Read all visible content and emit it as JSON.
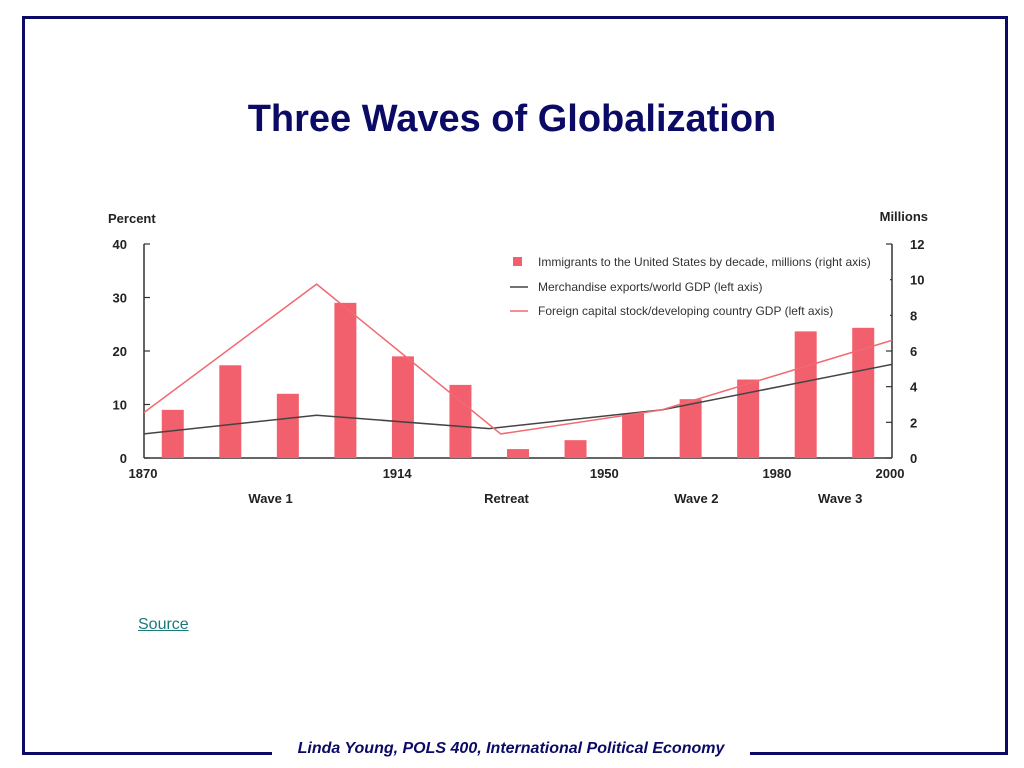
{
  "slide": {
    "title": "Three Waves of Globalization",
    "source_label": "Source",
    "footer": "Linda Young, POLS 400, International Political Economy",
    "border_color": "#0b0b66",
    "title_color": "#0b0b66"
  },
  "chart_data": {
    "type": "bar",
    "left_axis_label": "Percent",
    "right_axis_label": "Millions",
    "left_ylim": [
      0,
      40
    ],
    "left_ticks": [
      "0",
      "10",
      "20",
      "30",
      "40"
    ],
    "right_ylim": [
      0,
      12
    ],
    "right_ticks": [
      "0",
      "2",
      "4",
      "6",
      "8",
      "10",
      "12"
    ],
    "xlim": [
      1870,
      2000
    ],
    "x_tick_labels": [
      {
        "year": 1870,
        "label": "1870"
      },
      {
        "year": 1914,
        "label": "1914"
      },
      {
        "year": 1950,
        "label": "1950"
      },
      {
        "year": 1980,
        "label": "1980"
      },
      {
        "year": 2000,
        "label": "2000"
      }
    ],
    "period_labels": [
      {
        "year": 1892,
        "label": "Wave 1"
      },
      {
        "year": 1933,
        "label": "Retreat"
      },
      {
        "year": 1966,
        "label": "Wave 2"
      },
      {
        "year": 1991,
        "label": "Wave 3"
      }
    ],
    "bar_color": "#f2606e",
    "export_line_color": "#444444",
    "capital_line_color": "#f06a72",
    "series": [
      {
        "name": "Immigrants to the United States by decade, millions (right axis)",
        "axis": "right",
        "kind": "bar",
        "x": [
          1875,
          1885,
          1895,
          1905,
          1915,
          1925,
          1935,
          1945,
          1955,
          1965,
          1975,
          1985,
          1995
        ],
        "values": [
          2.7,
          5.2,
          3.6,
          8.7,
          5.7,
          4.1,
          0.5,
          1.0,
          2.5,
          3.3,
          4.4,
          7.1,
          7.3
        ]
      },
      {
        "name": "Merchandise exports/world GDP (left axis)",
        "axis": "left",
        "kind": "line",
        "x": [
          1870,
          1900,
          1930,
          1960,
          2000
        ],
        "values": [
          4.5,
          8,
          5.5,
          9,
          17.5
        ]
      },
      {
        "name": "Foreign capital stock/developing country GDP  (left axis)",
        "axis": "left",
        "kind": "line",
        "x": [
          1870,
          1900,
          1932,
          1960,
          2000
        ],
        "values": [
          8.5,
          32.5,
          4.5,
          9,
          22
        ]
      }
    ]
  }
}
